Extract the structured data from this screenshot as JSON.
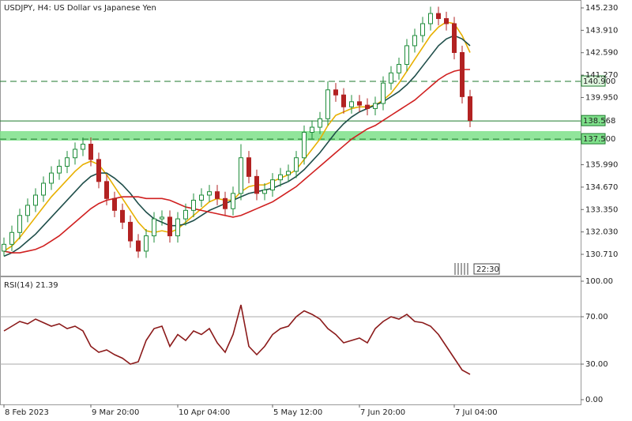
{
  "chart_data": [
    {
      "type": "candlestick",
      "title": "USDJPY, H4:  US Dollar vs Japanese Yen",
      "ylim": [
        129.407,
        145.695
      ],
      "yticks": [
        {
          "value": 145.23,
          "label": "145.230"
        },
        {
          "value": 143.91,
          "label": "143.910"
        },
        {
          "value": 142.59,
          "label": "142.590"
        },
        {
          "value": 141.27,
          "label": "141.270"
        },
        {
          "value": 139.95,
          "label": "139.950"
        },
        {
          "value": 135.99,
          "label": "135.990"
        },
        {
          "value": 134.67,
          "label": "134.670"
        },
        {
          "value": 133.35,
          "label": "133.350"
        },
        {
          "value": 132.03,
          "label": "132.030"
        },
        {
          "value": 130.71,
          "label": "130.710"
        }
      ],
      "xticks": [
        {
          "value": 0,
          "label": "8 Feb 2023"
        },
        {
          "value": 11,
          "label": "9 Mar 20:00"
        },
        {
          "value": 22,
          "label": "10 Apr 04:00"
        },
        {
          "value": 34,
          "label": "5 May 12:00"
        },
        {
          "value": 45,
          "label": "7 Jun 20:00"
        },
        {
          "value": 57,
          "label": "7 Jul 04:00"
        }
      ],
      "up_color": "#1e8c3a",
      "down_color": "#b22222",
      "open": [
        130.9,
        131.3,
        132.0,
        133.0,
        133.6,
        134.2,
        134.9,
        135.5,
        135.9,
        136.4,
        136.9,
        137.2,
        136.3,
        135.0,
        134.0,
        133.3,
        132.6,
        131.5,
        130.9,
        131.8,
        132.8,
        132.9,
        131.8,
        132.8,
        133.3,
        133.9,
        134.2,
        134.4,
        134.0,
        133.4,
        134.3,
        136.4,
        135.3,
        134.3,
        134.5,
        135.1,
        135.4,
        135.6,
        136.4,
        137.9,
        138.2,
        138.7,
        140.4,
        140.1,
        139.4,
        139.7,
        139.5,
        139.3,
        139.6,
        140.8,
        141.4,
        141.9,
        143.0,
        143.6,
        144.3,
        144.9,
        144.6,
        144.3,
        142.6,
        140.0
      ],
      "high": [
        131.7,
        132.4,
        133.4,
        134.0,
        134.6,
        135.3,
        135.9,
        136.3,
        136.8,
        137.3,
        137.6,
        137.6,
        136.7,
        135.4,
        134.4,
        133.7,
        133.0,
        131.9,
        132.2,
        133.2,
        133.3,
        133.3,
        133.2,
        133.7,
        134.3,
        134.6,
        134.8,
        134.8,
        134.4,
        134.7,
        137.2,
        136.8,
        135.7,
        134.9,
        135.5,
        135.8,
        136.0,
        136.8,
        138.3,
        138.6,
        139.1,
        140.9,
        140.8,
        140.5,
        140.1,
        140.1,
        139.9,
        140.0,
        141.2,
        141.8,
        142.3,
        143.4,
        144.0,
        144.7,
        145.3,
        145.3,
        145.0,
        144.7,
        143.0,
        140.4
      ],
      "low": [
        130.6,
        130.9,
        131.6,
        132.6,
        133.2,
        133.8,
        134.5,
        135.1,
        135.5,
        136.0,
        136.5,
        135.9,
        134.6,
        133.6,
        132.9,
        132.2,
        131.1,
        130.5,
        130.5,
        131.4,
        132.4,
        131.4,
        131.4,
        132.4,
        132.9,
        133.5,
        133.8,
        133.6,
        133.0,
        133.0,
        133.9,
        134.9,
        133.9,
        133.9,
        134.1,
        134.7,
        135.0,
        135.2,
        136.0,
        137.5,
        137.8,
        138.3,
        139.7,
        139.0,
        139.0,
        139.1,
        138.9,
        138.9,
        139.2,
        140.4,
        141.0,
        141.5,
        142.6,
        143.2,
        143.9,
        144.2,
        143.9,
        142.2,
        139.6,
        138.2
      ],
      "close": [
        131.3,
        132.0,
        133.0,
        133.6,
        134.2,
        134.9,
        135.5,
        135.9,
        136.4,
        136.9,
        137.2,
        136.3,
        135.0,
        134.0,
        133.3,
        132.6,
        131.5,
        130.9,
        131.8,
        132.8,
        132.9,
        131.8,
        132.8,
        133.3,
        133.9,
        134.2,
        134.4,
        134.0,
        133.4,
        134.3,
        136.4,
        135.3,
        134.3,
        134.5,
        135.1,
        135.4,
        135.6,
        136.4,
        137.9,
        138.2,
        138.7,
        140.4,
        140.1,
        139.4,
        139.7,
        139.5,
        139.3,
        139.6,
        140.8,
        141.4,
        141.9,
        143.0,
        143.6,
        144.3,
        144.9,
        144.6,
        144.3,
        142.6,
        140.0,
        138.6
      ],
      "series": [
        {
          "color": "#e8b000",
          "values": [
            130.9,
            131.2,
            131.7,
            132.3,
            132.9,
            133.5,
            134.1,
            134.6,
            135.1,
            135.6,
            136.0,
            136.2,
            136.0,
            135.4,
            134.7,
            134.0,
            133.3,
            132.6,
            132.1,
            132.0,
            132.1,
            132.0,
            132.2,
            132.6,
            133.0,
            133.4,
            133.8,
            134.0,
            133.9,
            133.9,
            134.4,
            134.7,
            134.8,
            134.8,
            135.0,
            135.2,
            135.4,
            135.7,
            136.3,
            136.9,
            137.5,
            138.3,
            138.9,
            139.1,
            139.3,
            139.4,
            139.4,
            139.5,
            139.8,
            140.2,
            140.8,
            141.5,
            142.2,
            142.9,
            143.6,
            144.1,
            144.4,
            144.3,
            143.6,
            142.6
          ]
        },
        {
          "color": "#1f4e4a",
          "values": [
            130.6,
            130.8,
            131.1,
            131.5,
            131.9,
            132.4,
            132.9,
            133.4,
            133.9,
            134.4,
            134.9,
            135.3,
            135.5,
            135.5,
            135.2,
            134.8,
            134.3,
            133.7,
            133.2,
            132.8,
            132.6,
            132.4,
            132.4,
            132.5,
            132.7,
            133.0,
            133.3,
            133.5,
            133.7,
            133.9,
            134.1,
            134.3,
            134.4,
            134.5,
            134.6,
            134.8,
            135.0,
            135.3,
            135.7,
            136.2,
            136.7,
            137.3,
            137.9,
            138.4,
            138.8,
            139.1,
            139.3,
            139.5,
            139.7,
            140.0,
            140.3,
            140.7,
            141.2,
            141.8,
            142.4,
            143.0,
            143.4,
            143.6,
            143.4,
            143.0
          ]
        },
        {
          "color": "#d02020",
          "values": [
            130.9,
            130.8,
            130.8,
            130.9,
            131.0,
            131.2,
            131.5,
            131.8,
            132.2,
            132.6,
            133.0,
            133.4,
            133.7,
            133.9,
            134.0,
            134.1,
            134.1,
            134.1,
            134.0,
            134.0,
            134.0,
            133.9,
            133.7,
            133.5,
            133.4,
            133.3,
            133.2,
            133.1,
            133.0,
            132.9,
            133.0,
            133.2,
            133.4,
            133.6,
            133.8,
            134.1,
            134.4,
            134.7,
            135.1,
            135.5,
            135.9,
            136.3,
            136.7,
            137.1,
            137.5,
            137.8,
            138.1,
            138.3,
            138.6,
            138.9,
            139.2,
            139.5,
            139.8,
            140.2,
            140.6,
            141.0,
            141.3,
            141.5,
            141.6,
            141.6
          ]
        }
      ],
      "levels": [
        {
          "value": 140.9,
          "label": "140.900",
          "style": "dashed"
        },
        {
          "value": 138.568,
          "label": "138.568",
          "style": "solid"
        },
        {
          "value": 137.5,
          "label": "137.500",
          "style": "dashed"
        }
      ],
      "zone": [
        137.41,
        137.97
      ],
      "zone_color": "#7ee08a",
      "time_label": "22:30"
    },
    {
      "type": "line",
      "title": "RSI(14) 21.39",
      "ylim": [
        -4,
        104
      ],
      "color": "#8b1a1a",
      "yticks": [
        {
          "value": 100,
          "label": "100.00"
        },
        {
          "value": 70,
          "label": "70.00"
        },
        {
          "value": 30,
          "label": "30.00"
        },
        {
          "value": 0,
          "label": "0.00"
        }
      ],
      "levels": [
        70,
        30
      ],
      "values": [
        58,
        62,
        66,
        64,
        68,
        65,
        62,
        64,
        60,
        62,
        58,
        45,
        40,
        42,
        38,
        35,
        30,
        32,
        50,
        60,
        62,
        45,
        55,
        50,
        58,
        55,
        60,
        48,
        40,
        55,
        80,
        45,
        38,
        45,
        55,
        60,
        62,
        70,
        75,
        72,
        68,
        60,
        55,
        48,
        50,
        52,
        48,
        60,
        66,
        70,
        68,
        72,
        66,
        65,
        62,
        55,
        45,
        35,
        25,
        21.39
      ]
    }
  ]
}
